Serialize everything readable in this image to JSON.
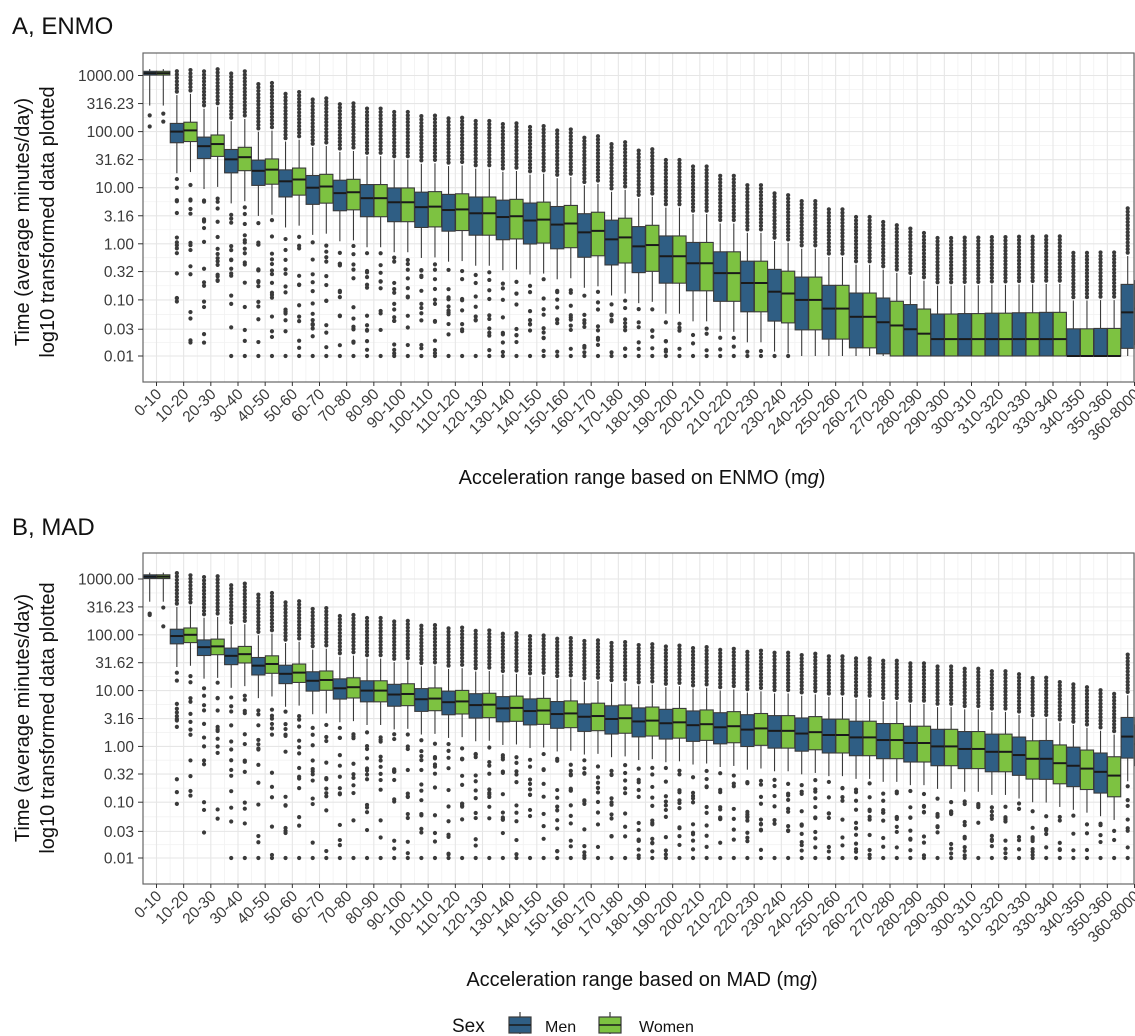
{
  "colors": {
    "men": "#2f5e84",
    "women": "#7dc241",
    "outline": "#3a3a3a",
    "grid_major": "#e6e6e6",
    "grid_minor": "#f2f2f2",
    "panel_border": "#666666"
  },
  "legend": {
    "title": "Sex",
    "entries": [
      "Men",
      "Women"
    ],
    "placement": "bottom"
  },
  "chart_data": [
    {
      "type": "boxplot",
      "title": "A, ENMO",
      "xlabel": "Acceleration range based on ENMO (mg)",
      "xlabel_parts": [
        "Acceleration range based on ENMO (m",
        "g",
        ")"
      ],
      "ylabel": [
        "Time (average minutes/day)",
        "log10 transformed data plotted"
      ],
      "y_scale": "log10",
      "y_ticks": [
        "1000.00",
        "316.23",
        "100.00",
        "31.62",
        "10.00",
        "3.16",
        "1.00",
        "0.32",
        "0.10",
        "0.03",
        "0.01"
      ],
      "y_tick_values": [
        1000,
        316.23,
        100,
        31.62,
        10,
        3.16,
        1,
        0.32,
        0.1,
        0.03,
        0.01
      ],
      "grid": true,
      "categories": [
        "0-10",
        "10-20",
        "20-30",
        "30-40",
        "40-50",
        "50-60",
        "60-70",
        "70-80",
        "80-90",
        "90-100",
        "100-110",
        "110-120",
        "120-130",
        "130-140",
        "140-150",
        "150-160",
        "160-170",
        "170-180",
        "180-190",
        "190-200",
        "200-210",
        "210-220",
        "220-230",
        "230-240",
        "240-250",
        "250-260",
        "260-270",
        "270-280",
        "280-290",
        "290-300",
        "300-310",
        "310-320",
        "320-330",
        "330-340",
        "340-350",
        "350-360",
        "360-8000"
      ],
      "series": [
        {
          "name": "Men",
          "median": [
            1100,
            100,
            55,
            32,
            20,
            13,
            10,
            8,
            6.5,
            5.5,
            4.5,
            4.0,
            3.5,
            3.0,
            2.6,
            2.2,
            1.6,
            1.2,
            0.9,
            0.6,
            0.45,
            0.3,
            0.2,
            0.14,
            0.1,
            0.07,
            0.05,
            0.04,
            0.03,
            0.02,
            0.02,
            0.02,
            0.02,
            0.02,
            0.01,
            0.01,
            0.06
          ]
        },
        {
          "name": "Women",
          "median": [
            1100,
            105,
            60,
            35,
            21,
            14,
            10.5,
            8.3,
            6.5,
            5.5,
            4.6,
            4.1,
            3.5,
            3.1,
            2.7,
            2.3,
            1.7,
            1.3,
            0.95,
            0.6,
            0.45,
            0.3,
            0.2,
            0.13,
            0.1,
            0.07,
            0.05,
            0.035,
            0.025,
            0.02,
            0.02,
            0.02,
            0.02,
            0.02,
            0.01,
            0.01,
            0.07
          ]
        }
      ]
    },
    {
      "type": "boxplot",
      "title": "B, MAD",
      "xlabel": "Acceleration range based on MAD (mg)",
      "xlabel_parts": [
        "Acceleration range based on MAD (m",
        "g",
        ")"
      ],
      "ylabel": [
        "Time (average minutes/day)",
        "log10 transformed data plotted"
      ],
      "y_scale": "log10",
      "y_ticks": [
        "1000.00",
        "316.23",
        "100.00",
        "31.62",
        "10.00",
        "3.16",
        "1.00",
        "0.32",
        "0.10",
        "0.03",
        "0.01"
      ],
      "y_tick_values": [
        1000,
        316.23,
        100,
        31.62,
        10,
        3.16,
        1,
        0.32,
        0.1,
        0.03,
        0.01
      ],
      "grid": true,
      "categories": [
        "0-10",
        "10-20",
        "20-30",
        "30-40",
        "40-50",
        "50-60",
        "60-70",
        "70-80",
        "80-90",
        "90-100",
        "100-110",
        "110-120",
        "120-130",
        "130-140",
        "140-150",
        "150-160",
        "160-170",
        "170-180",
        "180-190",
        "190-200",
        "200-210",
        "210-220",
        "220-230",
        "230-240",
        "240-250",
        "250-260",
        "260-270",
        "270-280",
        "280-290",
        "290-300",
        "300-310",
        "310-320",
        "320-330",
        "330-340",
        "340-350",
        "350-360",
        "360-8000"
      ],
      "series": [
        {
          "name": "Men",
          "median": [
            1100,
            95,
            60,
            42,
            28,
            20,
            15,
            11,
            10,
            8.5,
            7,
            6.2,
            5.5,
            4.8,
            4.3,
            3.8,
            3.4,
            3.1,
            2.8,
            2.6,
            2.4,
            2.2,
            2.0,
            1.9,
            1.7,
            1.6,
            1.45,
            1.3,
            1.15,
            1.0,
            0.9,
            0.8,
            0.7,
            0.6,
            0.45,
            0.35,
            1.5
          ]
        },
        {
          "name": "Women",
          "median": [
            1100,
            100,
            62,
            45,
            30,
            21,
            15.5,
            11.5,
            10,
            8.7,
            7.2,
            6.4,
            5.6,
            4.9,
            4.4,
            3.9,
            3.5,
            3.2,
            2.9,
            2.7,
            2.5,
            2.3,
            2.1,
            1.9,
            1.8,
            1.6,
            1.45,
            1.3,
            1.15,
            1.0,
            0.9,
            0.8,
            0.6,
            0.5,
            0.4,
            0.3,
            1.1
          ]
        }
      ]
    }
  ]
}
